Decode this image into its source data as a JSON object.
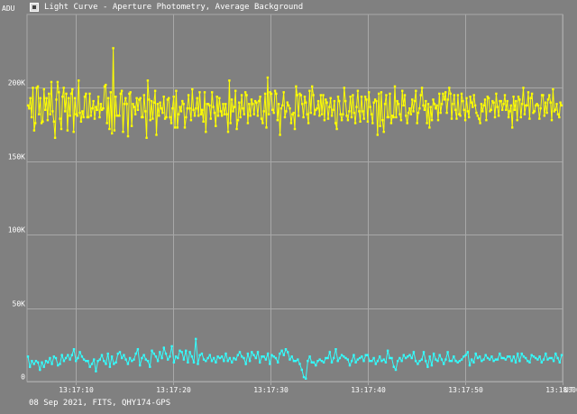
{
  "window": {
    "title": "Light Curve - Aperture Photometry, Average Background",
    "icon": "app-icon"
  },
  "footer": {
    "info": "08 Sep 2021, FITS, QHY174-GPS"
  },
  "colors": {
    "background": "#808080",
    "grid": "#a8a8a8",
    "axis_text": "#ffffff",
    "series_target": "#ffff00",
    "series_background": "#33ffff"
  },
  "chart_data": {
    "type": "line",
    "title": "",
    "ylabel": "ADU",
    "xlabel": "UT",
    "ylim": [
      0,
      250000
    ],
    "x_seconds_range": [
      5,
      60
    ],
    "y_ticks": [
      {
        "value": 0,
        "label": "0"
      },
      {
        "value": 50000,
        "label": "50K"
      },
      {
        "value": 100000,
        "label": "100K"
      },
      {
        "value": 150000,
        "label": "150K"
      },
      {
        "value": 200000,
        "label": "200K"
      }
    ],
    "x_ticks": [
      {
        "value": 10,
        "label": "13:17:10"
      },
      {
        "value": 20,
        "label": "13:17:20"
      },
      {
        "value": 30,
        "label": "13:17:30"
      },
      {
        "value": 40,
        "label": "13:17:40"
      },
      {
        "value": 50,
        "label": "13:17:50"
      },
      {
        "value": 60,
        "label": "13:18:00"
      }
    ],
    "grid": true,
    "markers": true,
    "series": [
      {
        "color": "#ffff00",
        "values": [
          188000,
          186000,
          193000,
          180000,
          200000,
          171000,
          176000,
          200000,
          201000,
          182000,
          193000,
          176000,
          177000,
          199000,
          185000,
          193000,
          178000,
          196000,
          182000,
          204000,
          184000,
          177000,
          166000,
          192000,
          204000,
          197000,
          179000,
          172000,
          194000,
          200000,
          184000,
          196000,
          171000,
          193000,
          181000,
          196000,
          199000,
          170000,
          193000,
          182000,
          181000,
          205000,
          183000,
          177000,
          184000,
          180000,
          194000,
          196000,
          180000,
          180000,
          196000,
          181000,
          186000,
          191000,
          179000,
          187000,
          185000,
          194000,
          180000,
          189000,
          185000,
          186000,
          201000,
          202000,
          176000,
          193000,
          172000,
          197000,
          169000,
          227000,
          171000,
          194000,
          181000,
          181000,
          181000,
          196000,
          198000,
          170000,
          189000,
          193000,
          189000,
          167000,
          196000,
          197000,
          174000,
          189000,
          187000,
          182000,
          193000,
          185000,
          192000,
          193000,
          180000,
          180000,
          195000,
          184000,
          166000,
          205000,
          192000,
          178000,
          191000,
          179000,
          190000,
          198000,
          168000,
          189000,
          181000,
          190000,
          186000,
          183000,
          194000,
          179000,
          180000,
          192000,
          193000,
          180000,
          176000,
          186000,
          194000,
          173000,
          198000,
          173000,
          182000,
          187000,
          184000,
          191000,
          189000,
          173000,
          180000,
          186000,
          195000,
          186000,
          178000,
          199000,
          185000,
          181000,
          186000,
          193000,
          181000,
          197000,
          182000,
          185000,
          177000,
          197000,
          170000,
          189000,
          189000,
          188000,
          179000,
          197000,
          187000,
          183000,
          174000,
          194000,
          181000,
          193000,
          184000,
          181000,
          189000,
          182000,
          189000,
          182000,
          170000,
          205000,
          176000,
          192000,
          184000,
          187000,
          198000,
          172000,
          178000,
          190000,
          180000,
          195000,
          186000,
          182000,
          197000,
          195000,
          176000,
          189000,
          181000,
          192000,
          189000,
          182000,
          191000,
          190000,
          181000,
          191000,
          194000,
          179000,
          176000,
          184000,
          196000,
          173000,
          207000,
          182000,
          197000,
          196000,
          185000,
          183000,
          198000,
          196000,
          178000,
          189000,
          168000,
          186000,
          188000,
          197000,
          180000,
          184000,
          190000,
          188000,
          186000,
          176000,
          182000,
          183000,
          172000,
          201000,
          195000,
          181000,
          196000,
          195000,
          189000,
          180000,
          194000,
          190000,
          182000,
          176000,
          198000,
          183000,
          201000,
          195000,
          182000,
          185000,
          186000,
          191000,
          181000,
          195000,
          182000,
          195000,
          178000,
          192000,
          190000,
          179000,
          187000,
          193000,
          181000,
          185000,
          191000,
          176000,
          172000,
          194000,
          191000,
          182000,
          178000,
          182000,
          200000,
          191000,
          181000,
          178000,
          184000,
          194000,
          180000,
          195000,
          183000,
          176000,
          187000,
          198000,
          184000,
          177000,
          194000,
          184000,
          179000,
          194000,
          192000,
          177000,
          197000,
          187000,
          182000,
          176000,
          190000,
          192000,
          191000,
          168000,
          196000,
          174000,
          197000,
          178000,
          170000,
          189000,
          195000,
          180000,
          180000,
          196000,
          176000,
          181000,
          180000,
          201000,
          180000,
          191000,
          189000,
          182000,
          178000,
          198000,
          188000,
          195000,
          181000,
          176000,
          183000,
          186000,
          182000,
          192000,
          184000,
          191000,
          198000,
          176000,
          183000,
          186000,
          195000,
          200000,
          188000,
          185000,
          191000,
          176000,
          189000,
          173000,
          187000,
          178000,
          192000,
          189000,
          186000,
          188000,
          178000,
          196000,
          183000,
          189000,
          196000,
          192000,
          197000,
          183000,
          192000,
          200000,
          196000,
          179000,
          189000,
          195000,
          185000,
          179000,
          195000,
          182000,
          181000,
          196000,
          191000,
          185000,
          178000,
          193000,
          184000,
          180000,
          194000,
          190000,
          187000,
          195000,
          188000,
          183000,
          181000,
          179000,
          176000,
          189000,
          184000,
          188000,
          192000,
          178000,
          194000,
          193000,
          184000,
          185000,
          191000,
          190000,
          180000,
          196000,
          187000,
          181000,
          191000,
          191000,
          185000,
          189000,
          195000,
          185000,
          191000,
          180000,
          184000,
          188000,
          173000,
          194000,
          185000,
          191000,
          178000,
          194000,
          192000,
          180000,
          189000,
          200000,
          182000,
          188000,
          188000,
          197000,
          179000,
          193000,
          196000,
          183000,
          184000,
          188000,
          189000,
          188000,
          179000,
          186000,
          195000,
          195000,
          181000,
          190000,
          183000,
          192000,
          195000,
          190000,
          178000,
          199000,
          184000,
          185000,
          189000,
          182000,
          180000,
          190000,
          188000
        ]
      },
      {
        "color": "#33ffff",
        "values": [
          17000,
          10000,
          14000,
          12000,
          14000,
          13000,
          8000,
          13000,
          10000,
          14000,
          13000,
          16000,
          12000,
          17000,
          16000,
          11000,
          12000,
          18000,
          14000,
          16000,
          18000,
          15000,
          18000,
          22000,
          14000,
          16000,
          20000,
          17000,
          15000,
          14000,
          14000,
          10000,
          12000,
          15000,
          7000,
          14000,
          15000,
          18000,
          14000,
          12000,
          19000,
          10000,
          17000,
          12000,
          13000,
          19000,
          20000,
          16000,
          18000,
          15000,
          12000,
          16000,
          14000,
          15000,
          19000,
          22000,
          11000,
          16000,
          18000,
          15000,
          14000,
          10000,
          21000,
          19000,
          17000,
          14000,
          20000,
          16000,
          23000,
          19000,
          15000,
          17000,
          24000,
          13000,
          17000,
          16000,
          21000,
          20000,
          15000,
          21000,
          13000,
          20000,
          17000,
          13000,
          29000,
          12000,
          18000,
          19000,
          15000,
          14000,
          16000,
          18000,
          14000,
          16000,
          13000,
          17000,
          16000,
          17000,
          14000,
          19000,
          14000,
          16000,
          13000,
          16000,
          15000,
          18000,
          20000,
          17000,
          16000,
          12000,
          19000,
          14000,
          20000,
          18000,
          16000,
          20000,
          13000,
          17000,
          17000,
          15000,
          19000,
          12000,
          18000,
          17000,
          16000,
          13000,
          19000,
          21000,
          18000,
          22000,
          20000,
          15000,
          17000,
          14000,
          14000,
          15000,
          12000,
          8000,
          3000,
          2000,
          14000,
          17000,
          13000,
          13000,
          11000,
          14000,
          15000,
          14000,
          13000,
          16000,
          16000,
          20000,
          13000,
          16000,
          22000,
          14000,
          16000,
          18000,
          17000,
          16000,
          15000,
          11000,
          14000,
          18000,
          13000,
          15000,
          16000,
          17000,
          14000,
          18000,
          18000,
          14000,
          14000,
          16000,
          12000,
          14000,
          17000,
          14000,
          15000,
          13000,
          21000,
          16000,
          16000,
          10000,
          8000,
          14000,
          16000,
          14000,
          18000,
          16000,
          17000,
          18000,
          16000,
          20000,
          14000,
          12000,
          14000,
          15000,
          20000,
          14000,
          10000,
          17000,
          11000,
          19000,
          15000,
          14000,
          18000,
          15000,
          12000,
          15000,
          20000,
          14000,
          14000,
          17000,
          14000,
          13000,
          14000,
          15000,
          17000,
          18000,
          20000,
          11000,
          15000,
          13000,
          19000,
          16000,
          17000,
          14000,
          15000,
          18000,
          16000,
          15000,
          17000,
          14000,
          15000,
          15000,
          19000,
          16000,
          16000,
          15000,
          17000,
          17000,
          14000,
          17000,
          13000,
          19000,
          14000,
          19000,
          17000,
          16000,
          14000,
          13000,
          18000,
          17000,
          16000,
          15000,
          17000,
          13000,
          15000,
          19000,
          15000,
          16000,
          16000,
          14000,
          19000,
          16000,
          13000,
          18000
        ]
      }
    ]
  }
}
